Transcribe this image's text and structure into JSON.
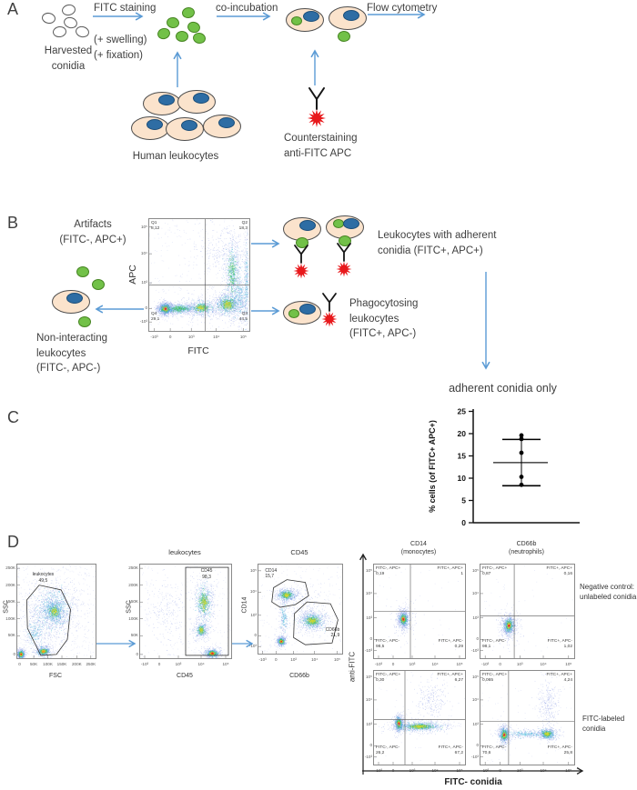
{
  "colors": {
    "arrow_blue": "#5b9bd5",
    "conidia_green": "#72c148",
    "cell_fill": "#fbe3cc",
    "nucleus_blue": "#2e6da4",
    "star_red": "#e8191c"
  },
  "panel_a": {
    "letter": "A",
    "harvested_1": "Harvested",
    "harvested_2": "conidia",
    "fitc_staining": "FITC staining",
    "swelling": "(+ swelling)",
    "fixation": "(+ fixation)",
    "co_incubation": "co-incubation",
    "flow_cytometry": "Flow cytometry",
    "human_leukocytes": "Human leukocytes",
    "counterstaining_1": "Counterstaining",
    "counterstaining_2": "anti-FITC APC"
  },
  "panel_b": {
    "letter": "B",
    "artifacts_1": "Artifacts",
    "artifacts_2": "(FITC-, APC+)",
    "adherent_1": "Leukocytes with adherent",
    "adherent_2": "conidia (FITC+, APC+)",
    "phago_1": "Phagocytosing",
    "phago_2": "leukocytes",
    "phago_3": "(FITC+, APC-)",
    "non_1": "Non-interacting",
    "non_2": "leukocytes",
    "non_3": "(FITC-, APC-)",
    "adherent_only": "adherent conidia only"
  },
  "panel_c": {
    "letter": "C"
  },
  "panel_d": {
    "letter": "D",
    "col1_1": "CD14",
    "col1_2": "(monocytes)",
    "col2_1": "CD66b",
    "col2_2": "(neutrophils)",
    "row1_1": "Negative control:",
    "row1_2": "unlabeled conidia",
    "row2_1": "FITC-labeled",
    "row2_2": "conidia",
    "ylabel": "anti-FITC",
    "xlabel": "FITC- conidia"
  },
  "chart_data": {
    "panel_c": {
      "type": "scatter",
      "ylabel": "% cells (of FITC+ APC+)",
      "yticks": [
        0,
        5,
        10,
        15,
        20,
        25
      ],
      "ylim": [
        0,
        25
      ],
      "points": [
        19.6,
        18.8,
        15.7,
        10.3,
        8.5
      ],
      "mean": 13.5,
      "error_high": 18.7,
      "error_low": 8.3
    },
    "tick_sets": {
      "logx": {
        "labels": [
          "-10³",
          "0",
          "10³",
          "10⁴",
          "10⁵"
        ],
        "pos": [
          0.05,
          0.21,
          0.42,
          0.67,
          0.94
        ]
      },
      "logy": {
        "labels": [
          "10⁵",
          "10⁴",
          "10³",
          "0",
          "-10³"
        ],
        "pos": [
          0.07,
          0.31,
          0.57,
          0.8,
          0.92
        ]
      },
      "linx": {
        "labels": [
          "0",
          "50K",
          "100K",
          "150K",
          "200K",
          "250K"
        ],
        "pos": [
          0.03,
          0.21,
          0.39,
          0.57,
          0.76,
          0.94
        ]
      },
      "liny": {
        "labels": [
          "250K",
          "200K",
          "150K",
          "100K",
          "50K",
          "0"
        ],
        "pos": [
          0.04,
          0.22,
          0.4,
          0.58,
          0.76,
          0.96
        ]
      }
    },
    "flow_plots": [
      {
        "id": "B1",
        "type": "flow-density",
        "xlabel": "FITC",
        "ylabel": "APC",
        "xticks": "log",
        "yticks": "log",
        "seed": 11,
        "noise": 320,
        "quad": {
          "vx": 0.56,
          "hy": 0.41
        },
        "corners": [
          {
            "pos": "tl",
            "lines": [
              "Q1",
              "8,12"
            ]
          },
          {
            "pos": "tr",
            "lines": [
              "Q2",
              "18,3"
            ]
          },
          {
            "pos": "bl",
            "lines": [
              "Q4",
              "29,1"
            ]
          },
          {
            "pos": "br",
            "lines": [
              "Q3",
              "44,5"
            ]
          }
        ],
        "pops": [
          [
            0.16,
            0.2,
            0.04,
            0.03,
            900,
            6
          ],
          [
            0.3,
            0.2,
            0.105,
            0.028,
            500,
            3
          ],
          [
            0.52,
            0.21,
            0.09,
            0.045,
            450,
            4
          ],
          [
            0.78,
            0.24,
            0.085,
            0.06,
            650,
            4
          ],
          [
            0.83,
            0.52,
            0.05,
            0.19,
            550,
            3
          ],
          [
            0.72,
            0.74,
            0.13,
            0.11,
            220,
            1
          ],
          [
            0.9,
            0.3,
            0.04,
            0.12,
            250,
            2
          ],
          [
            0.97,
            0.45,
            0.015,
            0.28,
            260,
            2
          ]
        ]
      },
      {
        "id": "D1",
        "type": "flow-density",
        "xlabel": "FSC",
        "ylabel": "SSC",
        "xticks": "lin",
        "yticks": "lin",
        "seed": 22,
        "noise": 550,
        "gates": [
          {
            "type": "poly",
            "points": [
              [
                0.3,
                0.03
              ],
              [
                0.13,
                0.32
              ],
              [
                0.12,
                0.62
              ],
              [
                0.28,
                0.78
              ],
              [
                0.56,
                0.73
              ],
              [
                0.68,
                0.52
              ],
              [
                0.64,
                0.2
              ],
              [
                0.5,
                0.04
              ]
            ],
            "label": [
              "leukocytes",
              "49,5"
            ],
            "label_at": [
              0.33,
              0.08
            ],
            "align": "center"
          }
        ],
        "pops": [
          [
            0.045,
            0.045,
            0.028,
            0.028,
            450,
            6
          ],
          [
            0.33,
            0.075,
            0.055,
            0.03,
            420,
            5
          ],
          [
            0.46,
            0.52,
            0.16,
            0.15,
            850,
            2
          ],
          [
            0.47,
            0.5,
            0.085,
            0.075,
            420,
            4
          ],
          [
            0.22,
            0.28,
            0.09,
            0.1,
            220,
            2
          ]
        ]
      },
      {
        "id": "D2",
        "type": "flow-density",
        "title": "leukocytes",
        "xlabel": "CD45",
        "ylabel": "SSC",
        "xticks": "log",
        "yticks": "lin",
        "seed": 33,
        "noise": 260,
        "gates": [
          {
            "type": "rect",
            "points": [
              [
                0.5,
                0.03
              ],
              [
                0.97,
                0.97
              ]
            ],
            "label": [
              "CD45",
              "98,3"
            ],
            "label_at": [
              0.73,
              0.04
            ],
            "align": "center"
          }
        ],
        "pops": [
          [
            0.28,
            0.48,
            0.12,
            0.18,
            200,
            1
          ],
          [
            0.7,
            0.6,
            0.06,
            0.13,
            550,
            4
          ],
          [
            0.67,
            0.3,
            0.045,
            0.05,
            280,
            4
          ],
          [
            0.79,
            0.055,
            0.05,
            0.03,
            480,
            6
          ]
        ]
      },
      {
        "id": "D3",
        "type": "flow-density",
        "title": "CD45",
        "xlabel": "CD66b",
        "ylabel": "CD14",
        "xticks": "log",
        "yticks": "log",
        "seed": 44,
        "noise": 280,
        "gates": [
          {
            "type": "poly",
            "points": [
              [
                0.16,
                0.58
              ],
              [
                0.18,
                0.74
              ],
              [
                0.34,
                0.83
              ],
              [
                0.56,
                0.8
              ],
              [
                0.6,
                0.65
              ],
              [
                0.44,
                0.55
              ],
              [
                0.26,
                0.52
              ]
            ],
            "label": [
              "CD14",
              "15,7"
            ],
            "label_at": [
              0.08,
              0.04
            ],
            "align": "left"
          },
          {
            "type": "poly",
            "points": [
              [
                0.42,
                0.18
              ],
              [
                0.43,
                0.45
              ],
              [
                0.58,
                0.58
              ],
              [
                0.86,
                0.56
              ],
              [
                0.95,
                0.38
              ],
              [
                0.88,
                0.12
              ],
              [
                0.56,
                0.1
              ]
            ],
            "label": [
              "CD66b",
              "21,9"
            ],
            "label_at": [
              0.97,
              0.7
            ],
            "align": "right"
          }
        ],
        "pops": [
          [
            0.33,
            0.66,
            0.07,
            0.04,
            480,
            4
          ],
          [
            0.64,
            0.37,
            0.095,
            0.06,
            650,
            4
          ],
          [
            0.27,
            0.14,
            0.028,
            0.028,
            420,
            6
          ],
          [
            0.3,
            0.4,
            0.03,
            0.13,
            180,
            2
          ],
          [
            0.55,
            0.55,
            0.12,
            0.1,
            140,
            1
          ]
        ]
      },
      {
        "id": "QTL",
        "type": "flow-density",
        "xticks": "log",
        "yticks": "log",
        "seed": 55,
        "noise": 50,
        "quad": {
          "vx": 0.4,
          "hy": 0.5
        },
        "corners": [
          {
            "pos": "tl",
            "lines": [
              "FITC-, APC+",
              "0,19"
            ]
          },
          {
            "pos": "tr",
            "lines": [
              "FITC+, APC+",
              "1"
            ]
          },
          {
            "pos": "bl",
            "lines": [
              "FITC-, APC-",
              "98,5"
            ]
          },
          {
            "pos": "br",
            "lines": [
              "FITC+, APC-",
              "0,29"
            ]
          }
        ],
        "pops": [
          [
            0.32,
            0.42,
            0.032,
            0.05,
            650,
            6
          ],
          [
            0.32,
            0.42,
            0.07,
            0.1,
            140,
            1
          ]
        ]
      },
      {
        "id": "QTR",
        "type": "flow-density",
        "xticks": "log",
        "yticks": "log",
        "seed": 66,
        "noise": 50,
        "quad": {
          "vx": 0.36,
          "hy": 0.45
        },
        "corners": [
          {
            "pos": "tl",
            "lines": [
              "FITC-, APC+",
              "0,87"
            ]
          },
          {
            "pos": "tr",
            "lines": [
              "FITC+, APC+",
              "0,16"
            ]
          },
          {
            "pos": "bl",
            "lines": [
              "FITC-, APC-",
              "98,1"
            ]
          },
          {
            "pos": "br",
            "lines": [
              "FITC+, APC-",
              "1,02"
            ]
          }
        ],
        "pops": [
          [
            0.3,
            0.35,
            0.035,
            0.055,
            650,
            6
          ],
          [
            0.3,
            0.35,
            0.075,
            0.11,
            140,
            1
          ]
        ]
      },
      {
        "id": "QBL",
        "type": "flow-density",
        "xticks": "log",
        "yticks": "log",
        "seed": 77,
        "noise": 70,
        "quad": {
          "vx": 0.34,
          "hy": 0.48
        },
        "corners": [
          {
            "pos": "tl",
            "lines": [
              "FITC-, APC+",
              "0,30"
            ]
          },
          {
            "pos": "tr",
            "lines": [
              "FITC+, APC+",
              "6,27"
            ]
          },
          {
            "pos": "bl",
            "lines": [
              "FITC-, APC-",
              "26,2"
            ]
          },
          {
            "pos": "br",
            "lines": [
              "FITC+, APC-",
              "67,2"
            ]
          }
        ],
        "pops": [
          [
            0.27,
            0.44,
            0.028,
            0.05,
            550,
            6
          ],
          [
            0.5,
            0.41,
            0.16,
            0.03,
            750,
            4
          ],
          [
            0.63,
            0.7,
            0.09,
            0.1,
            230,
            1
          ]
        ]
      },
      {
        "id": "QBR",
        "type": "flow-density",
        "xticks": "log",
        "yticks": "log",
        "seed": 88,
        "noise": 70,
        "quad": {
          "vx": 0.3,
          "hy": 0.46
        },
        "corners": [
          {
            "pos": "tl",
            "lines": [
              "FITC-, APC+",
              "0,065"
            ]
          },
          {
            "pos": "tr",
            "lines": [
              "FITC+, APC+",
              "4,24"
            ]
          },
          {
            "pos": "bl",
            "lines": [
              "FITC-, APC-",
              "70,6"
            ]
          },
          {
            "pos": "br",
            "lines": [
              "FITC+, APC-",
              "25,8"
            ]
          }
        ],
        "pops": [
          [
            0.25,
            0.32,
            0.03,
            0.05,
            550,
            6
          ],
          [
            0.47,
            0.33,
            0.14,
            0.025,
            260,
            2
          ],
          [
            0.71,
            0.33,
            0.055,
            0.035,
            480,
            4
          ],
          [
            0.72,
            0.66,
            0.055,
            0.12,
            280,
            1
          ]
        ]
      }
    ]
  }
}
